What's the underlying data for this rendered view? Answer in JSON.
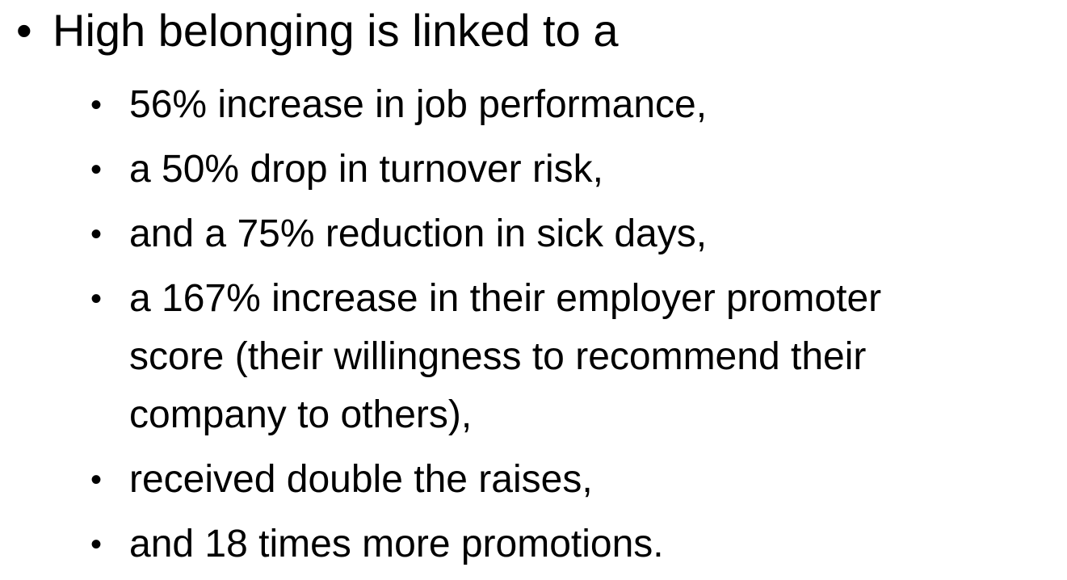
{
  "title": "High belonging is linked to a",
  "items": [
    {
      "lines": [
        "56% increase in job performance,"
      ]
    },
    {
      "lines": [
        "a 50% drop in turnover risk,"
      ]
    },
    {
      "lines": [
        "and a 75% reduction in sick days,"
      ]
    },
    {
      "lines": [
        "a 167% increase in their employer promoter",
        "score (their willingness to recommend their",
        "company to others),"
      ]
    },
    {
      "lines": [
        "received double the raises,"
      ]
    },
    {
      "lines": [
        "and 18 times more promotions."
      ]
    }
  ]
}
